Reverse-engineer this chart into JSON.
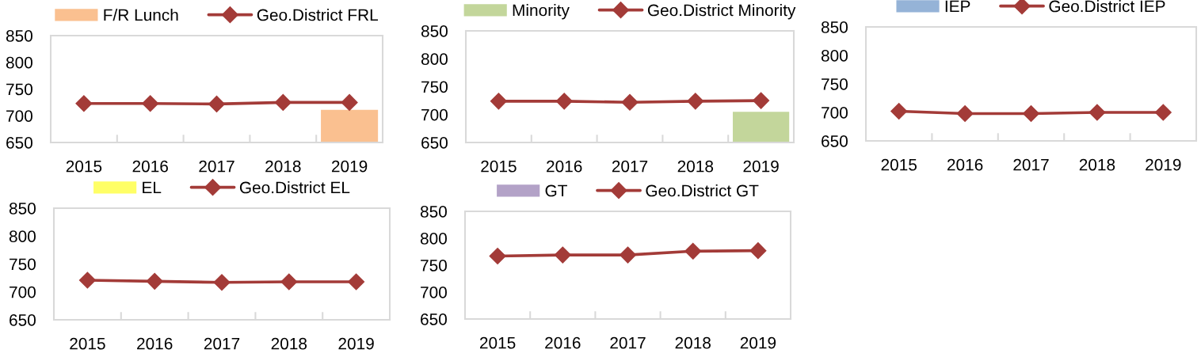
{
  "chart_data": [
    {
      "type": "line",
      "categories": [
        "2015",
        "2016",
        "2017",
        "2018",
        "2019"
      ],
      "series": [
        {
          "name": "F/R Lunch",
          "type": "bar",
          "color": "#fac090",
          "values": [
            null,
            null,
            null,
            null,
            711
          ]
        },
        {
          "name": "Geo.District FRL",
          "color": "#a33b38",
          "values": [
            723,
            723,
            722,
            725,
            725
          ]
        }
      ],
      "ylim": [
        650,
        850
      ],
      "yticks": [
        650,
        700,
        750,
        800,
        850
      ],
      "legend": "top",
      "marker": "diamond",
      "grid": false
    },
    {
      "type": "line",
      "categories": [
        "2015",
        "2016",
        "2017",
        "2018",
        "2019"
      ],
      "series": [
        {
          "name": "Minority",
          "type": "bar",
          "color": "#c3d69b",
          "values": [
            null,
            null,
            null,
            null,
            705
          ]
        },
        {
          "name": "Geo.District Minority",
          "color": "#a33b38",
          "values": [
            724,
            724,
            722,
            724,
            725
          ]
        }
      ],
      "ylim": [
        650,
        850
      ],
      "yticks": [
        650,
        700,
        750,
        800,
        850
      ],
      "legend": "top",
      "marker": "diamond",
      "grid": false
    },
    {
      "type": "line",
      "categories": [
        "2015",
        "2016",
        "2017",
        "2018",
        "2019"
      ],
      "series": [
        {
          "name": "IEP",
          "type": "bar",
          "color": "#95b3d7",
          "values": [
            null,
            null,
            null,
            null,
            null
          ]
        },
        {
          "name": "Geo.District IEP",
          "color": "#a33b38",
          "values": [
            702,
            698,
            698,
            700,
            700
          ]
        }
      ],
      "ylim": [
        650,
        850
      ],
      "yticks": [
        650,
        700,
        750,
        800,
        850
      ],
      "legend": "top",
      "marker": "diamond",
      "grid": false
    },
    {
      "type": "line",
      "categories": [
        "2015",
        "2016",
        "2017",
        "2018",
        "2019"
      ],
      "series": [
        {
          "name": "EL",
          "type": "bar",
          "color": "#ffff66",
          "values": [
            null,
            null,
            null,
            null,
            null
          ]
        },
        {
          "name": "Geo.District EL",
          "color": "#a33b38",
          "values": [
            721,
            719,
            717,
            718,
            718
          ]
        }
      ],
      "ylim": [
        650,
        850
      ],
      "yticks": [
        650,
        700,
        750,
        800,
        850
      ],
      "legend": "top",
      "marker": "diamond",
      "grid": false
    },
    {
      "type": "line",
      "categories": [
        "2015",
        "2016",
        "2017",
        "2018",
        "2019"
      ],
      "series": [
        {
          "name": "GT",
          "type": "bar",
          "color": "#b3a2c7",
          "values": [
            null,
            null,
            null,
            null,
            null
          ]
        },
        {
          "name": "Geo.District GT",
          "color": "#a33b38",
          "values": [
            767,
            769,
            769,
            776,
            777
          ]
        }
      ],
      "ylim": [
        650,
        850
      ],
      "yticks": [
        650,
        700,
        750,
        800,
        850
      ],
      "legend": "top",
      "marker": "diamond",
      "grid": false
    }
  ]
}
